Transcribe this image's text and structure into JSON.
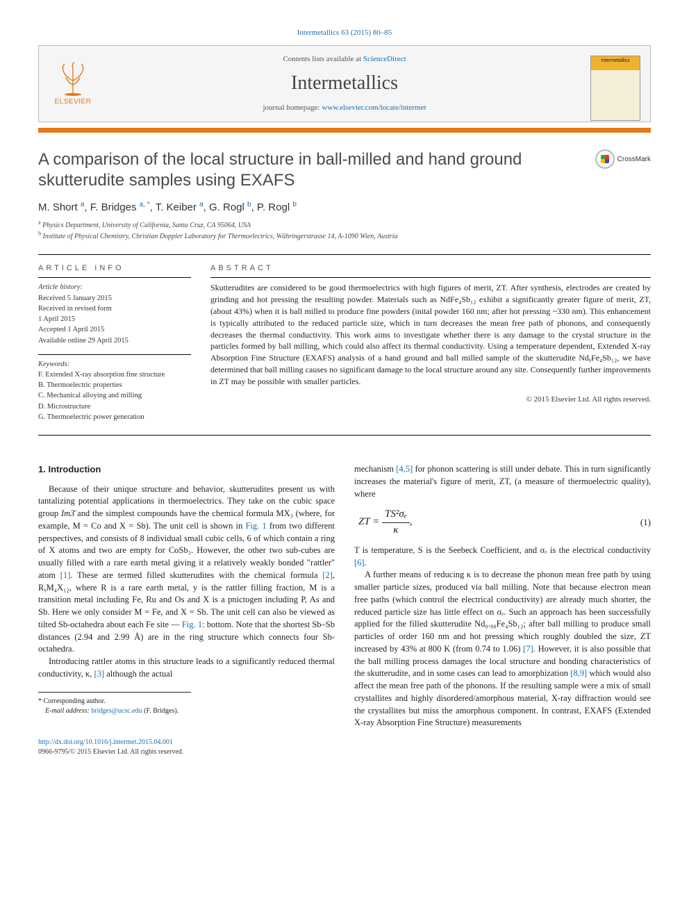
{
  "citation": {
    "journal": "Intermetallics",
    "vol_pages": "63 (2015) 80–85"
  },
  "header": {
    "contents_prefix": "Contents lists available at ",
    "contents_link": "ScienceDirect",
    "journal_name": "Intermetallics",
    "homepage_prefix": "journal homepage: ",
    "homepage_link": "www.elsevier.com/locate/intermet",
    "publisher_name": "ELSEVIER",
    "cover_label": "Intermetallics"
  },
  "crossmark_label": "CrossMark",
  "title": "A comparison of the local structure in ball-milled and hand ground skutterudite samples using EXAFS",
  "authors_html": "M. Short <sup>a</sup>, F. Bridges <sup>a, *</sup>, T. Keiber <sup>a</sup>, G. Rogl <sup>b</sup>, P. Rogl <sup>b</sup>",
  "affiliations": [
    {
      "tag": "a",
      "text": "Physics Department, University of California, Santa Cruz, CA 95064, USA"
    },
    {
      "tag": "b",
      "text": "Institute of Physical Chemistry, Christian Doppler Laboratory for Thermoelectrics, Währingerstrasse 14, A-1090 Wien, Austria"
    }
  ],
  "article_info": {
    "label": "ARTICLE INFO",
    "history_heading": "Article history:",
    "history": [
      "Received 5 January 2015",
      "Received in revised form",
      "1 April 2015",
      "Accepted 1 April 2015",
      "Available online 29 April 2015"
    ],
    "keywords_heading": "Keywords:",
    "keywords": [
      "F. Extended X-ray absorption fine structure",
      "B. Thermoelectric properties",
      "C. Mechanical alloying and milling",
      "D. Microstructure",
      "G. Thermoelectric power generation"
    ]
  },
  "abstract": {
    "label": "ABSTRACT",
    "text": "Skutterudites are considered to be good thermoelectrics with high figures of merit, ZT. After synthesis, electrodes are created by grinding and hot pressing the resulting powder. Materials such as NdFe₄Sb₁₂ exhibit a significantly greater figure of merit, ZT, (about 43%) when it is ball milled to produce fine powders (inital powder 160 nm; after hot pressing ~330 nm). This enhancement is typically attributed to the reduced particle size, which in turn decreases the mean free path of phonons, and consequently decreases the thermal conductivity. This work aims to investigate whether there is any damage to the crystal structure in the particles formed by ball milling, which could also affect its thermal conductivity. Using a temperature dependent, Extended X-ray Absorption Fine Structure (EXAFS) analysis of a hand ground and ball milled sample of the skutterudite NdᵧFe₄Sb₁₂, we have determined that ball milling causes no significant damage to the local structure around any site. Consequently further improvements in ZT may be possible with smaller particles.",
    "copyright": "© 2015 Elsevier Ltd. All rights reserved."
  },
  "body": {
    "section_heading": "1. Introduction",
    "left": {
      "p1_a": "Because of their unique structure and behavior, skutterudites present us with tantalizing potential applications in thermoelectrics. They take on the cubic space group ",
      "p1_space": "Im3̄",
      "p1_b": " and the simplest compounds have the chemical formula MX₃ (where, for example, M = Co and X = Sb). The unit cell is shown in ",
      "p1_fig": "Fig. 1",
      "p1_c": " from two different perspectives, and consists of 8 individual small cubic cells, 6 of which contain a ring of X atoms and two are empty for CoSb₃. However, the other two sub-cubes are usually filled with a rare earth metal giving it a relatively weakly bonded \"rattler\" atom ",
      "p1_ref1": "[1]",
      "p1_d": ". These are termed filled skutterudites with the chemical formula ",
      "p1_ref2": "[2]",
      "p1_e": ", RᵧM₄X₁₂, where R is a rare earth metal, y is the rattler filling fraction, M is a transition metal including Fe, Ru and Os and X is a pnictogen including P, As and Sb. Here we only consider M = Fe, and X = Sb. The unit cell can also be viewed as tilted Sb-octahedra about each Fe site — ",
      "p1_fig2": "Fig. 1",
      "p1_f": ": bottom. Note that the shortest Sb–Sb distances (2.94 and 2.99 Å) are in the ring structure which connects four Sb-octahedra.",
      "p2_a": "Introducing rattler atoms in this structure leads to a significantly reduced thermal conductivity, κ, ",
      "p2_ref": "[3]",
      "p2_b": " although the actual"
    },
    "right": {
      "p1_a": "mechanism ",
      "p1_ref45": "[4,5]",
      "p1_b": " for phonon scattering is still under debate. This in turn significantly increases the material's figure of merit, ZT, (a measure of thermoelectric quality), where",
      "eqn_lhs": "ZT",
      "eqn_eq": " = ",
      "eqn_num": "TS²σₑ",
      "eqn_den": "κ",
      "eqn_tail": ",",
      "eqn_number": "(1)",
      "p2_a": "T is temperature, S is the Seebeck Coefficient, and σₑ is the electrical conductivity ",
      "p2_ref6": "[6]",
      "p2_b": ".",
      "p3_a": "A further means of reducing κ is to decrease the phonon mean free path by using smaller particle sizes, produced via ball milling. Note that because electron mean free paths (which control the electrical conductivity) are already much shorter, the reduced particle size has little effect on σₑ. Such an approach has been successfully applied for the filled skutterudite Nd₀.₈₈Fe₄Sb₁₂; after ball milling to produce small particles of order 160 nm and hot pressing which roughly doubled the size, ZT increased by 43% at 800 K (from 0.74 to 1.06) ",
      "p3_ref7": "[7]",
      "p3_b": ". However, it is also possible that the ball milling process damages the local structure and bonding characteristics of the skutterudite, and in some cases can lead to amorphization ",
      "p3_ref89": "[8,9]",
      "p3_c": " which would also affect the mean free path of the phonons. If the resulting sample were a mix of small crystallites and highly disordered/amorphous material, X-ray diffraction would see the crystallites but miss the amorphous component. In contrast, EXAFS (Extended X-ray Absorption Fine Structure) measurements"
    }
  },
  "corresponding": {
    "star": "*",
    "label": "Corresponding author.",
    "email_label": "E-mail address:",
    "email": "bridges@ucsc.edu",
    "email_name": "(F. Bridges)."
  },
  "footer": {
    "doi": "http://dx.doi.org/10.1016/j.intermet.2015.04.001",
    "issn_copyright": "0966-9795/© 2015 Elsevier Ltd. All rights reserved."
  },
  "colors": {
    "orange": "#e67817",
    "link": "#1a6db5"
  }
}
